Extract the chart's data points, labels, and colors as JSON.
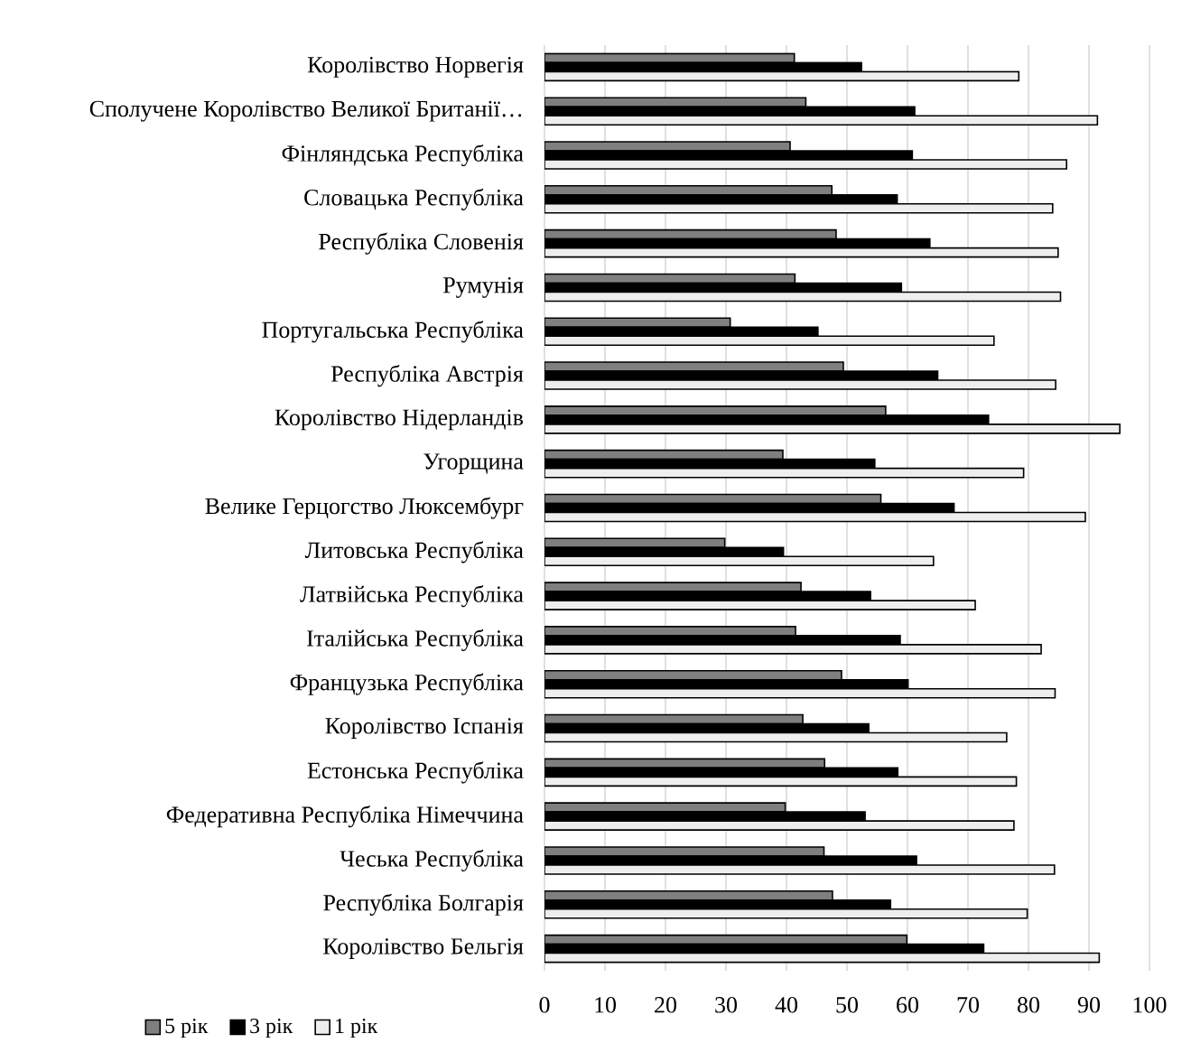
{
  "chart_data": {
    "type": "bar",
    "orientation": "horizontal",
    "categories": [
      "Королівство Норвегія",
      "Сполучене Королівство Великої Британії…",
      "Фінляндська Республіка",
      "Словацька Республіка",
      "Республіка Словенія",
      "Румунія",
      "Португальська Республіка",
      "Республіка Австрія",
      "Королівство Нідерландів",
      "Угорщина",
      "Велике Герцогство Люксембург",
      "Литовська Республіка",
      "Латвійська Республіка",
      "Італійська Республіка",
      "Французька Республіка",
      "Королівство Іспанія",
      "Естонська Республіка",
      "Федеративна Республіка Німеччина",
      "Чеська Республіка",
      "Республіка Болгарія",
      "Королівство Бельгія"
    ],
    "series": [
      {
        "name": "5 рік",
        "color": "#7f7f7f",
        "values": [
          41.3,
          43.2,
          40.6,
          47.5,
          48.2,
          41.4,
          30.7,
          49.4,
          56.4,
          39.4,
          55.6,
          29.8,
          42.4,
          41.5,
          49.1,
          42.7,
          46.3,
          39.8,
          46.2,
          47.6,
          59.9
        ]
      },
      {
        "name": "3 рік",
        "color": "#000000",
        "values": [
          52.4,
          61.2,
          60.8,
          58.3,
          63.7,
          59.0,
          45.2,
          65.0,
          73.4,
          54.6,
          67.7,
          39.5,
          53.9,
          58.8,
          60.1,
          53.6,
          58.4,
          53.0,
          61.5,
          57.2,
          72.6
        ]
      },
      {
        "name": "1 рік",
        "color": "#eeeeee",
        "values": [
          78.4,
          91.4,
          86.3,
          84.0,
          84.9,
          85.3,
          74.3,
          84.5,
          95.1,
          79.2,
          89.4,
          64.3,
          71.2,
          82.1,
          84.4,
          76.4,
          78.0,
          77.6,
          84.3,
          79.8,
          91.7
        ]
      }
    ],
    "xlim": [
      0,
      100
    ],
    "xticks": [
      0,
      10,
      20,
      30,
      40,
      50,
      60,
      70,
      80,
      90,
      100
    ],
    "grid": "x",
    "legend": "bottom left"
  }
}
